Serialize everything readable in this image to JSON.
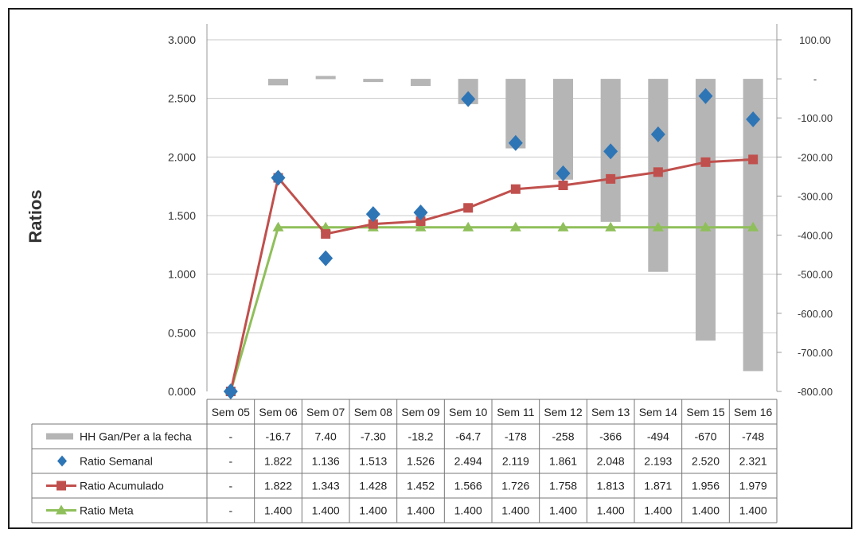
{
  "chart_data": {
    "type": "bar",
    "ylabel": "Ratios",
    "ylim": [
      0,
      3.0
    ],
    "y_ticks": [
      "0.000",
      "0.500",
      "1.000",
      "1.500",
      "2.000",
      "2.500",
      "3.000"
    ],
    "y2lim": [
      -800,
      100
    ],
    "y2_ticks": [
      "100.00",
      "-",
      "-100.00",
      "-200.00",
      "-300.00",
      "-400.00",
      "-500.00",
      "-600.00",
      "-700.00",
      "-800.00"
    ],
    "grid": true,
    "legend_placement": "data-table",
    "categories": [
      "Sem 05",
      "Sem 06",
      "Sem 07",
      "Sem 08",
      "Sem 09",
      "Sem 10",
      "Sem 11",
      "Sem 12",
      "Sem 13",
      "Sem 14",
      "Sem 15",
      "Sem 16"
    ],
    "category_labels": [
      "Sem 05",
      "Sem 06",
      "Sem 07",
      "Sem 08",
      "Sem 09",
      "Sem 10",
      "Sem 11",
      "Sem 12",
      "Sem 13",
      "Sem 14",
      "Sem 15",
      "Sem 16"
    ],
    "series": [
      {
        "name": "HH Gan/Per a la fecha",
        "type": "bar",
        "axis": "right",
        "color": "#b5b5b5",
        "values": [
          null,
          -16.7,
          7.4,
          -7.3,
          -18.2,
          -64.7,
          -178,
          -258,
          -366,
          -494,
          -670,
          -748
        ],
        "labels": [
          "-",
          "-16.7",
          "7.40",
          "-7.30",
          "-18.2",
          "-64.7",
          "-178",
          "-258",
          "-366",
          "-494",
          "-670",
          "-748"
        ]
      },
      {
        "name": "Ratio Semanal",
        "type": "scatter",
        "axis": "left",
        "color": "#2e75b6",
        "values": [
          0,
          1.822,
          1.136,
          1.513,
          1.526,
          2.494,
          2.119,
          1.861,
          2.048,
          2.193,
          2.52,
          2.321
        ],
        "labels": [
          "-",
          "1.822",
          "1.136",
          "1.513",
          "1.526",
          "2.494",
          "2.119",
          "1.861",
          "2.048",
          "2.193",
          "2.520",
          "2.321"
        ]
      },
      {
        "name": "Ratio Acumulado",
        "type": "line",
        "axis": "left",
        "color": "#c0504d",
        "values": [
          0,
          1.822,
          1.343,
          1.428,
          1.452,
          1.566,
          1.726,
          1.758,
          1.813,
          1.871,
          1.956,
          1.979
        ],
        "labels": [
          "-",
          "1.822",
          "1.343",
          "1.428",
          "1.452",
          "1.566",
          "1.726",
          "1.758",
          "1.813",
          "1.871",
          "1.956",
          "1.979"
        ]
      },
      {
        "name": "Ratio Meta",
        "type": "line",
        "axis": "left",
        "color": "#8fbf5a",
        "values": [
          0,
          1.4,
          1.4,
          1.4,
          1.4,
          1.4,
          1.4,
          1.4,
          1.4,
          1.4,
          1.4,
          1.4
        ],
        "labels": [
          "-",
          "1.400",
          "1.400",
          "1.400",
          "1.400",
          "1.400",
          "1.400",
          "1.400",
          "1.400",
          "1.400",
          "1.400",
          "1.400"
        ]
      }
    ]
  }
}
